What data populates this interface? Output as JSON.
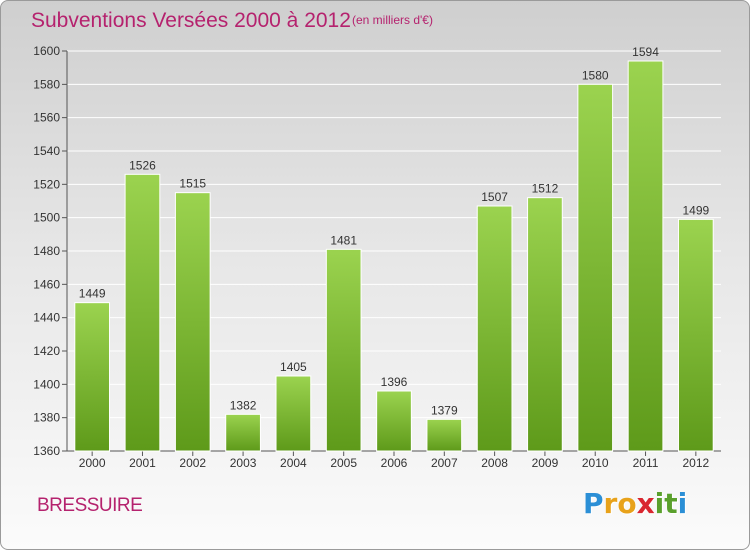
{
  "title": "Subventions Versées 2000 à 2012",
  "subtitle": "(en milliers d'€)",
  "commune": "BRESSUIRE",
  "logo": {
    "letters": [
      "P",
      "r",
      "o",
      "x",
      "i",
      "t",
      "i"
    ],
    "colors": [
      "#2b8fd6",
      "#e8a21a",
      "#e8a21a",
      "#d9262f",
      "#5aa02c",
      "#5aa02c",
      "#2b8fd6"
    ]
  },
  "colors": {
    "bar_top": "#9bd34f",
    "bar_bottom": "#5e9a1a",
    "title": "#b5226e",
    "grid": "#ffffff",
    "axis": "#555555"
  },
  "chart_data": {
    "type": "bar",
    "categories": [
      "2000",
      "2001",
      "2002",
      "2003",
      "2004",
      "2005",
      "2006",
      "2007",
      "2008",
      "2009",
      "2010",
      "2011",
      "2012"
    ],
    "values": [
      1449,
      1526,
      1515,
      1382,
      1405,
      1481,
      1396,
      1379,
      1507,
      1512,
      1580,
      1594,
      1499
    ],
    "title": "Subventions Versées 2000 à 2012",
    "xlabel": "",
    "ylabel": "",
    "ylim": [
      1360,
      1600
    ],
    "yticks": [
      1360,
      1380,
      1400,
      1420,
      1440,
      1460,
      1480,
      1500,
      1520,
      1540,
      1560,
      1580,
      1600
    ],
    "grid": true,
    "legend": "none"
  }
}
